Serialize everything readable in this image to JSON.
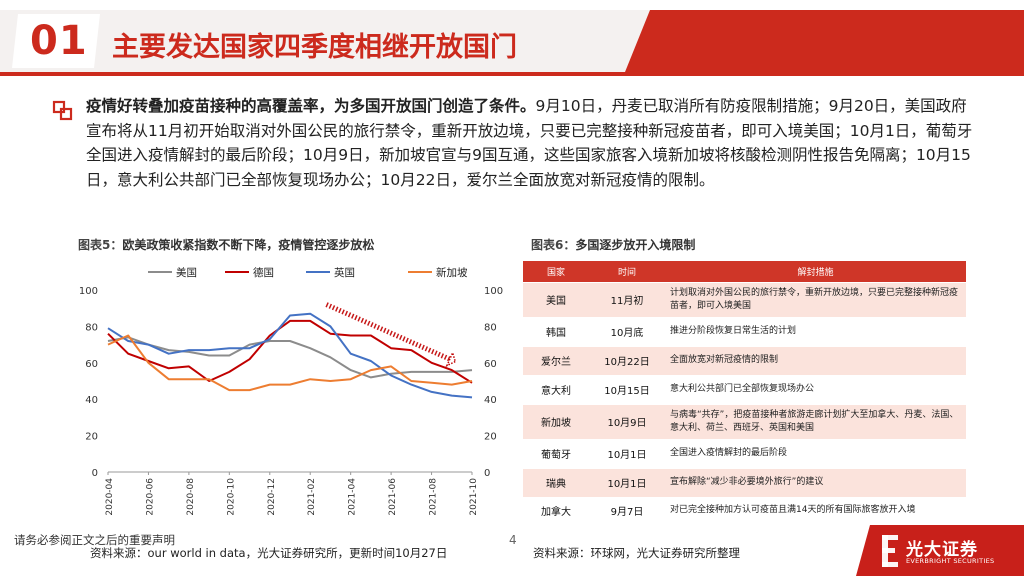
{
  "header": {
    "number": "01",
    "title": "主要发达国家四季度相继开放国门"
  },
  "body": {
    "bold_lead": "疫情好转叠加疫苗接种的高覆盖率，为多国开放国门创造了条件。",
    "text": "9月10日，丹麦已取消所有防疫限制措施；9月20日，美国政府宣布将从11月初开始取消对外国公民的旅行禁令，重新开放边境，只要已完整接种新冠疫苗者，即可入境美国；10月1日，葡萄牙全国进入疫情解封的最后阶段；10月9日，新加坡官宣与9国互通，这些国家旅客入境新加坡将核酸检测阴性报告免隔离；10月15日，意大利公共部门已全部恢复现场办公；10月22日，爱尔兰全面放宽对新冠疫情的限制。"
  },
  "figure5": {
    "label": "图表5：",
    "title": "欧美政策收紧指数不断下降，疫情管控逐步放松",
    "source": "资料来源：our world in data，光大证券研究所，更新时间10月27日"
  },
  "figure6": {
    "label": "图表6：",
    "title": "多国逐步放开入境限制",
    "source": "资料来源：环球网，光大证券研究所整理",
    "columns": [
      "国家",
      "时间",
      "解封措施"
    ],
    "rows": [
      {
        "country": "美国",
        "date": "11月初",
        "measure": "计划取消对外国公民的旅行禁令，重新开放边境，只要已完整接种新冠疫苗者，即可入境美国"
      },
      {
        "country": "韩国",
        "date": "10月底",
        "measure": "推进分阶段恢复日常生活的计划"
      },
      {
        "country": "爱尔兰",
        "date": "10月22日",
        "measure": "全面放宽对新冠疫情的限制"
      },
      {
        "country": "意大利",
        "date": "10月15日",
        "measure": "意大利公共部门已全部恢复现场办公"
      },
      {
        "country": "新加坡",
        "date": "10月9日",
        "measure": "与病毒“共存”，把疫苗接种者旅游走廊计划扩大至加拿大、丹麦、法国、意大利、荷兰、西班牙、英国和美国"
      },
      {
        "country": "葡萄牙",
        "date": "10月1日",
        "measure": "全国进入疫情解封的最后阶段"
      },
      {
        "country": "瑞典",
        "date": "10月1日",
        "measure": "宣布解除“减少非必要境外旅行”的建议"
      },
      {
        "country": "加拿大",
        "date": "9月7日",
        "measure": "对已完全接种加方认可疫苗且满14天的所有国际旅客放开入境"
      }
    ]
  },
  "footer": {
    "disclaimer": "请务必参阅正文之后的重要声明",
    "page": "4",
    "brand": "光大证券",
    "brand_en": "EVERBRIGHT SECURITIES"
  },
  "colors": {
    "brand_red": "#cc2a1d",
    "usa": "#8c8c8c",
    "germany": "#c00000",
    "uk": "#4472c4",
    "singapore": "#ed7d31",
    "table_header": "#cf3628",
    "table_band": "#fbe3dc"
  },
  "chart_data": {
    "type": "line",
    "title": "欧美政策收紧指数不断下降，疫情管控逐步放松",
    "x": [
      "2020-04",
      "2020-05",
      "2020-06",
      "2020-07",
      "2020-08",
      "2020-09",
      "2020-10",
      "2020-11",
      "2020-12",
      "2021-01",
      "2021-02",
      "2021-03",
      "2021-04",
      "2021-05",
      "2021-06",
      "2021-07",
      "2021-08",
      "2021-09",
      "2021-10"
    ],
    "ylim": [
      0,
      100
    ],
    "yticks": [
      0,
      20,
      40,
      60,
      80,
      100
    ],
    "xtick_labels": [
      "2020-04",
      "2020-06",
      "2020-08",
      "2020-10",
      "2020-12",
      "2021-02",
      "2021-04",
      "2021-06",
      "2021-08",
      "2021-10"
    ],
    "legend_position": "top",
    "annotation": "dotted downward arrow from 2021-03 to 2021-09 highlighting decline",
    "series": [
      {
        "name": "美国",
        "color": "#8c8c8c",
        "values": [
          72,
          74,
          70,
          67,
          66,
          64,
          64,
          70,
          72,
          72,
          68,
          63,
          56,
          52,
          54,
          55,
          55,
          55,
          56
        ]
      },
      {
        "name": "德国",
        "color": "#c00000",
        "values": [
          76,
          65,
          61,
          57,
          58,
          50,
          55,
          62,
          75,
          83,
          83,
          76,
          75,
          75,
          68,
          67,
          60,
          56,
          49
        ]
      },
      {
        "name": "英国",
        "color": "#4472c4",
        "values": [
          79,
          72,
          70,
          65,
          67,
          67,
          68,
          68,
          73,
          86,
          87,
          80,
          65,
          61,
          53,
          48,
          44,
          42,
          41
        ]
      },
      {
        "name": "新加坡",
        "color": "#ed7d31",
        "values": [
          70,
          75,
          60,
          51,
          51,
          51,
          45,
          45,
          48,
          48,
          51,
          50,
          51,
          56,
          58,
          50,
          49,
          48,
          50
        ]
      }
    ]
  }
}
